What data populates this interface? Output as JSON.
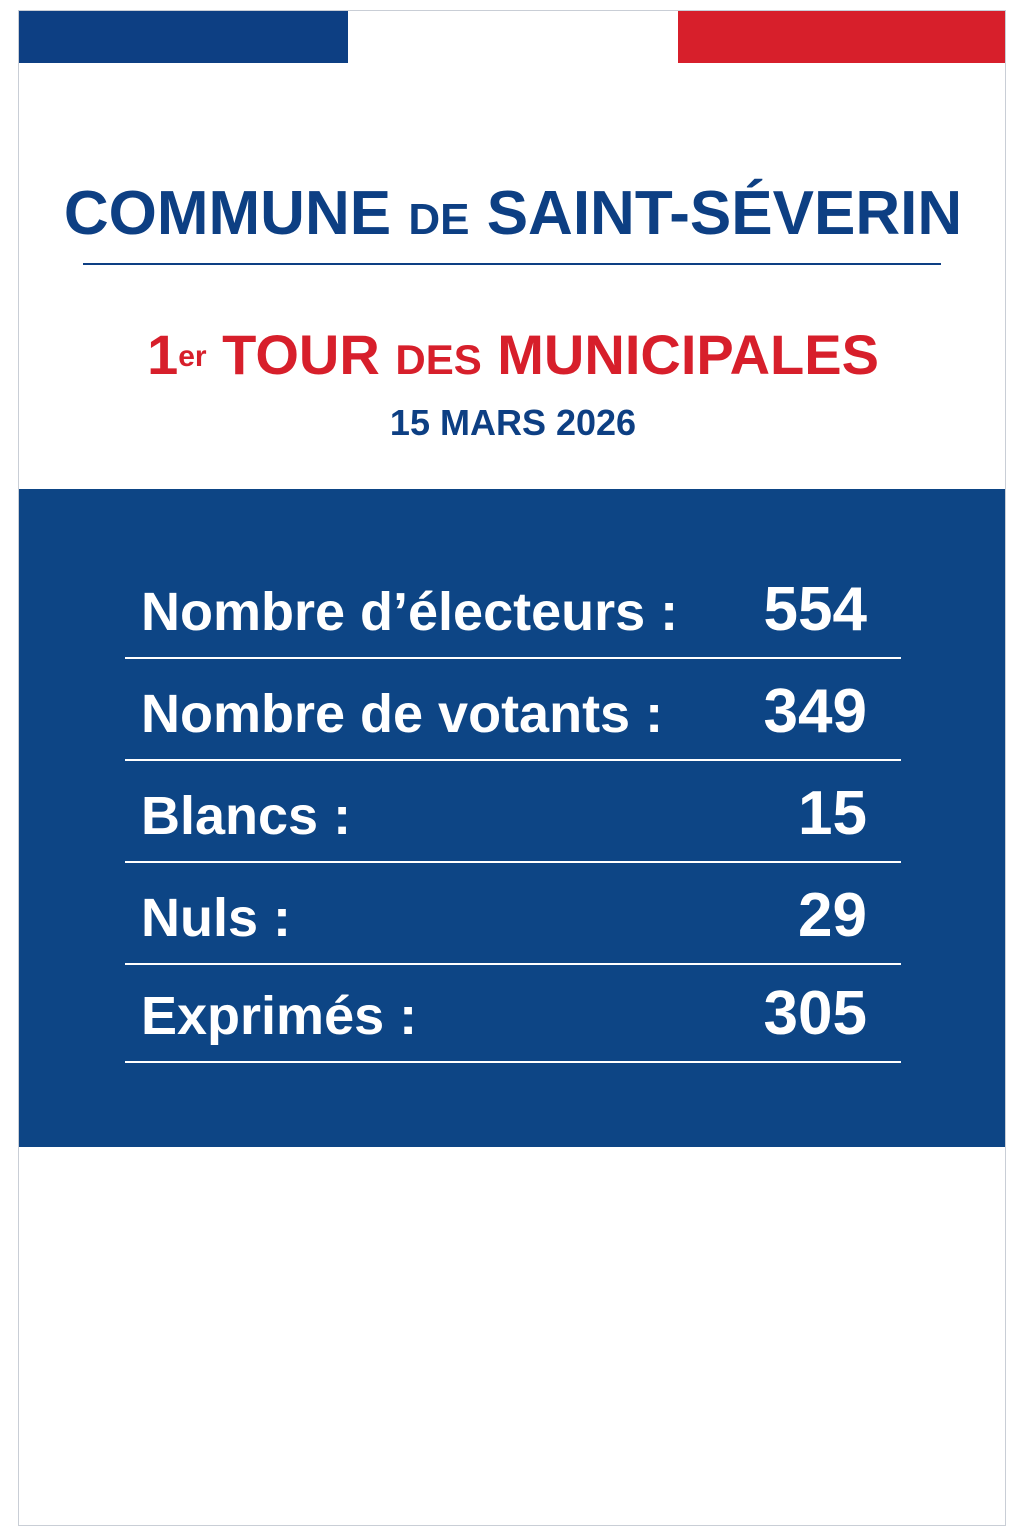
{
  "colors": {
    "blue": "#0d3f83",
    "red": "#d71f2b",
    "panel_blue": "#0d4585",
    "white": "#ffffff"
  },
  "header": {
    "title_part1": "COMMUNE",
    "title_part2": "DE",
    "title_part3": "SAINT-SÉVERIN",
    "round_number": "1",
    "round_suffix": "er",
    "round_part1": "TOUR",
    "round_part2": "DES",
    "round_part3": "MUNICIPALES",
    "date": "15 MARS 2026"
  },
  "results": [
    {
      "label": "Nombre d’électeurs :",
      "value": "554"
    },
    {
      "label": "Nombre de votants :",
      "value": "349"
    },
    {
      "label": "Blancs :",
      "value": "15"
    },
    {
      "label": "Nuls :",
      "value": "29"
    },
    {
      "label": "Exprimés :",
      "value": "305"
    }
  ]
}
